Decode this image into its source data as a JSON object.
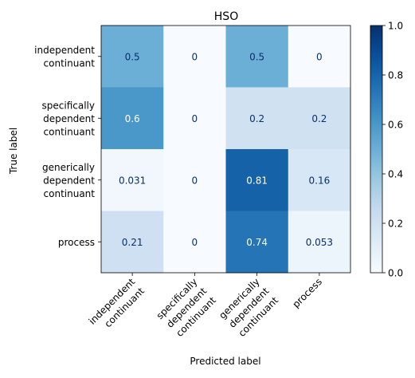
{
  "chart_data": {
    "type": "heatmap",
    "title": "HSO",
    "xlabel": "Predicted label",
    "ylabel": "True label",
    "row_labels": [
      [
        "independent",
        "continuant"
      ],
      [
        "specifically",
        "dependent",
        "continuant"
      ],
      [
        "generically",
        "dependent",
        "continuant"
      ],
      [
        "process"
      ]
    ],
    "col_labels": [
      [
        "independent",
        "continuant"
      ],
      [
        "specifically",
        "dependent",
        "continuant"
      ],
      [
        "generically",
        "dependent",
        "continuant"
      ],
      [
        "process"
      ]
    ],
    "values": [
      [
        0.5,
        0.0,
        0.5,
        0.0
      ],
      [
        0.6,
        0.0,
        0.2,
        0.2
      ],
      [
        0.031,
        0.0,
        0.81,
        0.16
      ],
      [
        0.21,
        0.0,
        0.74,
        0.053
      ]
    ],
    "value_labels": [
      [
        "0.5",
        "0",
        "0.5",
        "0"
      ],
      [
        "0.6",
        "0",
        "0.2",
        "0.2"
      ],
      [
        "0.031",
        "0",
        "0.81",
        "0.16"
      ],
      [
        "0.21",
        "0",
        "0.74",
        "0.053"
      ]
    ],
    "colormap": "Blues",
    "vmin": 0.0,
    "vmax": 1.0,
    "colorbar_ticks": [
      "0.0",
      "0.2",
      "0.4",
      "0.6",
      "0.8",
      "1.0"
    ],
    "grid": false
  }
}
